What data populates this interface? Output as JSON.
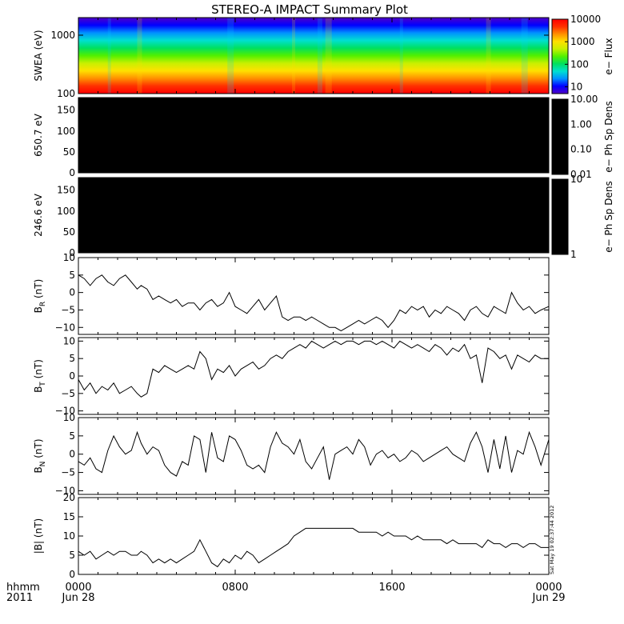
{
  "title": "STEREO-A IMPACT Summary Plot",
  "stamp": "Sat May 19 02:37:44 2012",
  "x_axis": {
    "range_hours": [
      0,
      24
    ],
    "ticks": [
      {
        "hour": 0,
        "time": "0000",
        "date": "Jun 28"
      },
      {
        "hour": 8,
        "time": "0800",
        "date": ""
      },
      {
        "hour": 16,
        "time": "1600",
        "date": ""
      },
      {
        "hour": 24,
        "time": "0000",
        "date": "Jun 29"
      }
    ],
    "corner_label_1": "hhmm",
    "corner_label_2": "2011"
  },
  "chart_data": [
    {
      "type": "heatmap",
      "ylabel": "SWEA (eV)",
      "yscale": "log",
      "ylim": [
        100,
        2000
      ],
      "yticks": [
        {
          "v": 100,
          "label": "100"
        },
        {
          "v": 1000,
          "label": "1000"
        }
      ],
      "colorbar": {
        "label": "e− Flux",
        "scale": "log",
        "range": [
          5,
          10000
        ],
        "ticks": [
          {
            "v": 10,
            "label": "10"
          },
          {
            "v": 100,
            "label": "100"
          },
          {
            "v": 1000,
            "label": "1000"
          },
          {
            "v": 10000,
            "label": "10000"
          }
        ],
        "colors": [
          "#5000c8",
          "#0000ff",
          "#0090ff",
          "#00e0d0",
          "#00e060",
          "#50f000",
          "#c8f000",
          "#ffe000",
          "#ff9000",
          "#ff3000",
          "#ff0000"
        ]
      }
    },
    {
      "type": "heatmap",
      "ylabel": "650.7 eV",
      "ylim": [
        0,
        180
      ],
      "yticks": [
        {
          "v": 0,
          "label": "0"
        },
        {
          "v": 50,
          "label": "50"
        },
        {
          "v": 100,
          "label": "100"
        },
        {
          "v": 150,
          "label": "150"
        }
      ],
      "fill": "#000000",
      "colorbar": {
        "label": "e− Ph Sp Dens",
        "scale": "log",
        "range": [
          0.01,
          10
        ],
        "ticks": [
          {
            "v": 0.01,
            "label": "0.01"
          },
          {
            "v": 0.1,
            "label": "0.10"
          },
          {
            "v": 1,
            "label": "1.00"
          },
          {
            "v": 10,
            "label": "10.00"
          }
        ]
      }
    },
    {
      "type": "heatmap",
      "ylabel": "246.6 eV",
      "ylim": [
        0,
        180
      ],
      "yticks": [
        {
          "v": 0,
          "label": "0"
        },
        {
          "v": 50,
          "label": "50"
        },
        {
          "v": 100,
          "label": "100"
        },
        {
          "v": 150,
          "label": "150"
        }
      ],
      "fill": "#000000",
      "colorbar": {
        "label": "e− Ph Sp Dens",
        "scale": "log",
        "range": [
          1,
          10
        ],
        "ticks": [
          {
            "v": 1,
            "label": "1"
          },
          {
            "v": 10,
            "label": "10"
          }
        ]
      }
    },
    {
      "type": "line",
      "ylabel_main": "B",
      "ylabel_sub": "R",
      "ylabel_unit": " (nT)",
      "ylim": [
        -12,
        10
      ],
      "yticks": [
        {
          "v": -10,
          "label": "−10"
        },
        {
          "v": -5,
          "label": "−5"
        },
        {
          "v": 0,
          "label": "0"
        },
        {
          "v": 5,
          "label": "5"
        },
        {
          "v": 10,
          "label": "10"
        }
      ],
      "x": [
        0,
        0.3,
        0.6,
        0.9,
        1.2,
        1.5,
        1.8,
        2.1,
        2.4,
        2.7,
        3.0,
        3.2,
        3.5,
        3.8,
        4.1,
        4.4,
        4.7,
        5.0,
        5.3,
        5.6,
        5.9,
        6.2,
        6.5,
        6.8,
        7.1,
        7.4,
        7.7,
        8.0,
        8.3,
        8.6,
        8.9,
        9.2,
        9.5,
        9.8,
        10.1,
        10.4,
        10.7,
        11.0,
        11.3,
        11.6,
        11.9,
        12.2,
        12.5,
        12.8,
        13.1,
        13.4,
        13.7,
        14.0,
        14.3,
        14.6,
        14.9,
        15.2,
        15.5,
        15.8,
        16.1,
        16.4,
        16.7,
        17.0,
        17.3,
        17.6,
        17.9,
        18.2,
        18.5,
        18.8,
        19.1,
        19.4,
        19.7,
        20.0,
        20.3,
        20.6,
        20.9,
        21.2,
        21.5,
        21.8,
        22.1,
        22.4,
        22.7,
        23.0,
        23.3,
        23.6,
        24.0
      ],
      "y": [
        5,
        4,
        2,
        4,
        5,
        3,
        2,
        4,
        5,
        3,
        1,
        2,
        1,
        -2,
        -1,
        -2,
        -3,
        -2,
        -4,
        -3,
        -3,
        -5,
        -3,
        -2,
        -4,
        -3,
        0,
        -4,
        -5,
        -6,
        -4,
        -2,
        -5,
        -3,
        -1,
        -7,
        -8,
        -7,
        -7,
        -8,
        -7,
        -8,
        -9,
        -10,
        -10,
        -11,
        -10,
        -9,
        -8,
        -9,
        -8,
        -7,
        -8,
        -10,
        -8,
        -5,
        -6,
        -4,
        -5,
        -4,
        -7,
        -5,
        -6,
        -4,
        -5,
        -6,
        -8,
        -5,
        -4,
        -6,
        -7,
        -4,
        -5,
        -6,
        0,
        -3,
        -5,
        -4,
        -6,
        -5,
        -4
      ]
    },
    {
      "type": "line",
      "ylabel_main": "B",
      "ylabel_sub": "T",
      "ylabel_unit": " (nT)",
      "ylim": [
        -11,
        11
      ],
      "yticks": [
        {
          "v": -10,
          "label": "−10"
        },
        {
          "v": -5,
          "label": "−5"
        },
        {
          "v": 0,
          "label": "0"
        },
        {
          "v": 5,
          "label": "5"
        },
        {
          "v": 10,
          "label": "10"
        }
      ],
      "x": [
        0,
        0.3,
        0.6,
        0.9,
        1.2,
        1.5,
        1.8,
        2.1,
        2.4,
        2.7,
        3.0,
        3.2,
        3.5,
        3.8,
        4.1,
        4.4,
        4.7,
        5.0,
        5.3,
        5.6,
        5.9,
        6.2,
        6.5,
        6.8,
        7.1,
        7.4,
        7.7,
        8.0,
        8.3,
        8.6,
        8.9,
        9.2,
        9.5,
        9.8,
        10.1,
        10.4,
        10.7,
        11.0,
        11.3,
        11.6,
        11.9,
        12.2,
        12.5,
        12.8,
        13.1,
        13.4,
        13.7,
        14.0,
        14.3,
        14.6,
        14.9,
        15.2,
        15.5,
        15.8,
        16.1,
        16.4,
        16.7,
        17.0,
        17.3,
        17.6,
        17.9,
        18.2,
        18.5,
        18.8,
        19.1,
        19.4,
        19.7,
        20.0,
        20.3,
        20.6,
        20.9,
        21.2,
        21.5,
        21.8,
        22.1,
        22.4,
        22.7,
        23.0,
        23.3,
        23.6,
        24.0
      ],
      "y": [
        -1,
        -4,
        -2,
        -5,
        -3,
        -4,
        -2,
        -5,
        -4,
        -3,
        -5,
        -6,
        -5,
        2,
        1,
        3,
        2,
        1,
        2,
        3,
        2,
        7,
        5,
        -1,
        2,
        1,
        3,
        0,
        2,
        3,
        4,
        2,
        3,
        5,
        6,
        5,
        7,
        8,
        9,
        8,
        10,
        9,
        8,
        9,
        10,
        9,
        10,
        10,
        9,
        10,
        10,
        9,
        10,
        9,
        8,
        10,
        9,
        8,
        9,
        8,
        7,
        9,
        8,
        6,
        8,
        7,
        9,
        5,
        6,
        -2,
        8,
        7,
        5,
        6,
        2,
        6,
        5,
        4,
        6,
        5,
        5
      ]
    },
    {
      "type": "line",
      "ylabel_main": "B",
      "ylabel_sub": "N",
      "ylabel_unit": " (nT)",
      "ylim": [
        -11,
        10
      ],
      "yticks": [
        {
          "v": -10,
          "label": "−10"
        },
        {
          "v": -5,
          "label": "−5"
        },
        {
          "v": 0,
          "label": "0"
        },
        {
          "v": 5,
          "label": "5"
        },
        {
          "v": 10,
          "label": "10"
        }
      ],
      "x": [
        0,
        0.3,
        0.6,
        0.9,
        1.2,
        1.5,
        1.8,
        2.1,
        2.4,
        2.7,
        3.0,
        3.2,
        3.5,
        3.8,
        4.1,
        4.4,
        4.7,
        5.0,
        5.3,
        5.6,
        5.9,
        6.2,
        6.5,
        6.8,
        7.1,
        7.4,
        7.7,
        8.0,
        8.3,
        8.6,
        8.9,
        9.2,
        9.5,
        9.8,
        10.1,
        10.4,
        10.7,
        11.0,
        11.3,
        11.6,
        11.9,
        12.2,
        12.5,
        12.8,
        13.1,
        13.4,
        13.7,
        14.0,
        14.3,
        14.6,
        14.9,
        15.2,
        15.5,
        15.8,
        16.1,
        16.4,
        16.7,
        17.0,
        17.3,
        17.6,
        17.9,
        18.2,
        18.5,
        18.8,
        19.1,
        19.4,
        19.7,
        20.0,
        20.3,
        20.6,
        20.9,
        21.2,
        21.5,
        21.8,
        22.1,
        22.4,
        22.7,
        23.0,
        23.3,
        23.6,
        24.0
      ],
      "y": [
        -2,
        -3,
        -1,
        -4,
        -5,
        1,
        5,
        2,
        0,
        1,
        6,
        3,
        0,
        2,
        1,
        -3,
        -5,
        -6,
        -2,
        -3,
        5,
        4,
        -5,
        6,
        -1,
        -2,
        5,
        4,
        1,
        -3,
        -4,
        -3,
        -5,
        2,
        6,
        3,
        2,
        0,
        4,
        -2,
        -4,
        -1,
        2,
        -7,
        0,
        1,
        2,
        0,
        4,
        2,
        -3,
        0,
        1,
        -1,
        0,
        -2,
        -1,
        1,
        0,
        -2,
        -1,
        0,
        1,
        2,
        0,
        -1,
        -2,
        3,
        6,
        2,
        -5,
        4,
        -4,
        5,
        -5,
        1,
        0,
        6,
        2,
        -3,
        4
      ]
    },
    {
      "type": "line",
      "ylabel_main": "|B|",
      "ylabel_sub": "",
      "ylabel_unit": " (nT)",
      "ylim": [
        0,
        20
      ],
      "yticks": [
        {
          "v": 0,
          "label": "0"
        },
        {
          "v": 5,
          "label": "5"
        },
        {
          "v": 10,
          "label": "10"
        },
        {
          "v": 15,
          "label": "15"
        },
        {
          "v": 20,
          "label": "20"
        }
      ],
      "x": [
        0,
        0.3,
        0.6,
        0.9,
        1.2,
        1.5,
        1.8,
        2.1,
        2.4,
        2.7,
        3.0,
        3.2,
        3.5,
        3.8,
        4.1,
        4.4,
        4.7,
        5.0,
        5.3,
        5.6,
        5.9,
        6.2,
        6.5,
        6.8,
        7.1,
        7.4,
        7.7,
        8.0,
        8.3,
        8.6,
        8.9,
        9.2,
        9.5,
        9.8,
        10.1,
        10.4,
        10.7,
        11.0,
        11.3,
        11.6,
        11.9,
        12.2,
        12.5,
        12.8,
        13.1,
        13.4,
        13.7,
        14.0,
        14.3,
        14.6,
        14.9,
        15.2,
        15.5,
        15.8,
        16.1,
        16.4,
        16.7,
        17.0,
        17.3,
        17.6,
        17.9,
        18.2,
        18.5,
        18.8,
        19.1,
        19.4,
        19.7,
        20.0,
        20.3,
        20.6,
        20.9,
        21.2,
        21.5,
        21.8,
        22.1,
        22.4,
        22.7,
        23.0,
        23.3,
        23.6,
        24.0
      ],
      "y": [
        6,
        5,
        6,
        4,
        5,
        6,
        5,
        6,
        6,
        5,
        5,
        6,
        5,
        3,
        4,
        3,
        4,
        3,
        4,
        5,
        6,
        9,
        6,
        3,
        2,
        4,
        3,
        5,
        4,
        6,
        5,
        3,
        4,
        5,
        6,
        7,
        8,
        10,
        11,
        12,
        12,
        12,
        12,
        12,
        12,
        12,
        12,
        12,
        11,
        11,
        11,
        11,
        10,
        11,
        10,
        10,
        10,
        9,
        10,
        9,
        9,
        9,
        9,
        8,
        9,
        8,
        8,
        8,
        8,
        7,
        9,
        8,
        8,
        7,
        8,
        8,
        7,
        8,
        8,
        7,
        7
      ]
    }
  ]
}
